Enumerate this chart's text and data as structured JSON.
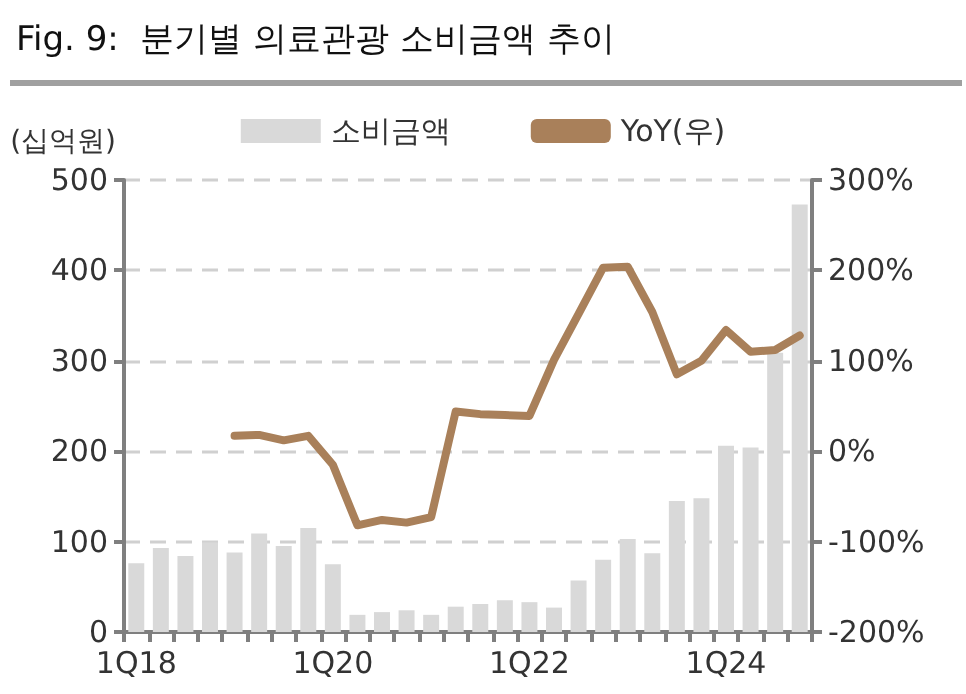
{
  "chart_data": {
    "type": "bar",
    "title": "Fig. 9:  분기별 의료관광 소비금액 추이",
    "ylabel": "(십억원)",
    "categories": [
      "1Q18",
      null,
      null,
      null,
      null,
      null,
      null,
      null,
      "1Q20",
      null,
      null,
      null,
      null,
      null,
      null,
      null,
      "1Q22",
      null,
      null,
      null,
      null,
      null,
      null,
      null,
      "1Q24",
      null,
      null,
      null
    ],
    "series": [
      {
        "name": "소비금액",
        "color": "#d9d9d9",
        "values": [
          76,
          93,
          84,
          99,
          88,
          109,
          95,
          115,
          75,
          19,
          22,
          24,
          19,
          28,
          31,
          35,
          33,
          27,
          57,
          80,
          103,
          87,
          145,
          148,
          206,
          204,
          309,
          473
        ]
      },
      {
        "name": "YoY(우)",
        "type": "line",
        "axis": "y2",
        "color": "#a9805a",
        "values": [
          null,
          null,
          null,
          null,
          17,
          18,
          12,
          17,
          -15,
          -82,
          -76,
          -79,
          -73,
          44,
          41,
          40,
          39,
          101,
          152,
          203,
          204,
          154,
          85,
          100,
          134,
          110,
          112,
          128
        ]
      }
    ],
    "ylim": [
      0,
      500
    ],
    "yticks": [
      0,
      100,
      200,
      300,
      400,
      500
    ],
    "y2lim": [
      -200,
      300
    ],
    "y2ticks": [
      {
        "value": -200,
        "label": "-200%"
      },
      {
        "value": -100,
        "label": "-100%"
      },
      {
        "value": 0,
        "label": "0%"
      },
      {
        "value": 100,
        "label": "100%"
      },
      {
        "value": 200,
        "label": "200%"
      },
      {
        "value": 300,
        "label": "300%"
      }
    ],
    "grid": "y",
    "legend": "top",
    "marker": "none",
    "line_style": "solid"
  }
}
